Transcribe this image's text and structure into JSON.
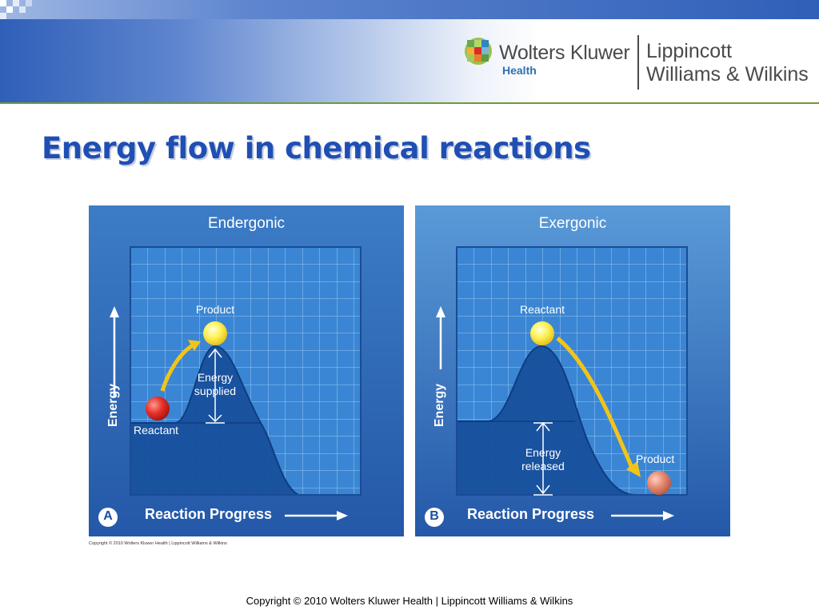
{
  "slide": {
    "title": "Energy flow in chemical reactions",
    "footer": "Copyright © 2010 Wolters Kluwer Health | Lippincott Williams & Wilkins",
    "figure_copyright": "Copyright © 2010 Wolters Kluwer Health | Lippincott Williams & Wilkins"
  },
  "logo": {
    "company": "Wolters Kluwer",
    "division": "Health",
    "publisher_line1": "Lippincott",
    "publisher_line2": "Williams & Wilkins"
  },
  "colors": {
    "title": "#1f4fb4",
    "panel_bg": "#2b6cb8",
    "grid": "#8fc0ec",
    "fill": "#174f9c",
    "arrow": "#f2c418",
    "product_ball_a": "#fff06a",
    "reactant_ball_a": "#e8312b"
  },
  "panels": [
    {
      "heading": "Endergonic",
      "letter": "A",
      "y_axis": "Energy",
      "x_axis": "Reaction Progress",
      "top_label": "Product",
      "bottom_label": "Reactant",
      "energy_label_1": "Energy",
      "energy_label_2": "supplied"
    },
    {
      "heading": "Exergonic",
      "letter": "B",
      "y_axis": "Energy",
      "x_axis": "Reaction Progress",
      "top_label": "Reactant",
      "bottom_label": "Product",
      "energy_label_1": "Energy",
      "energy_label_2": "released"
    }
  ]
}
